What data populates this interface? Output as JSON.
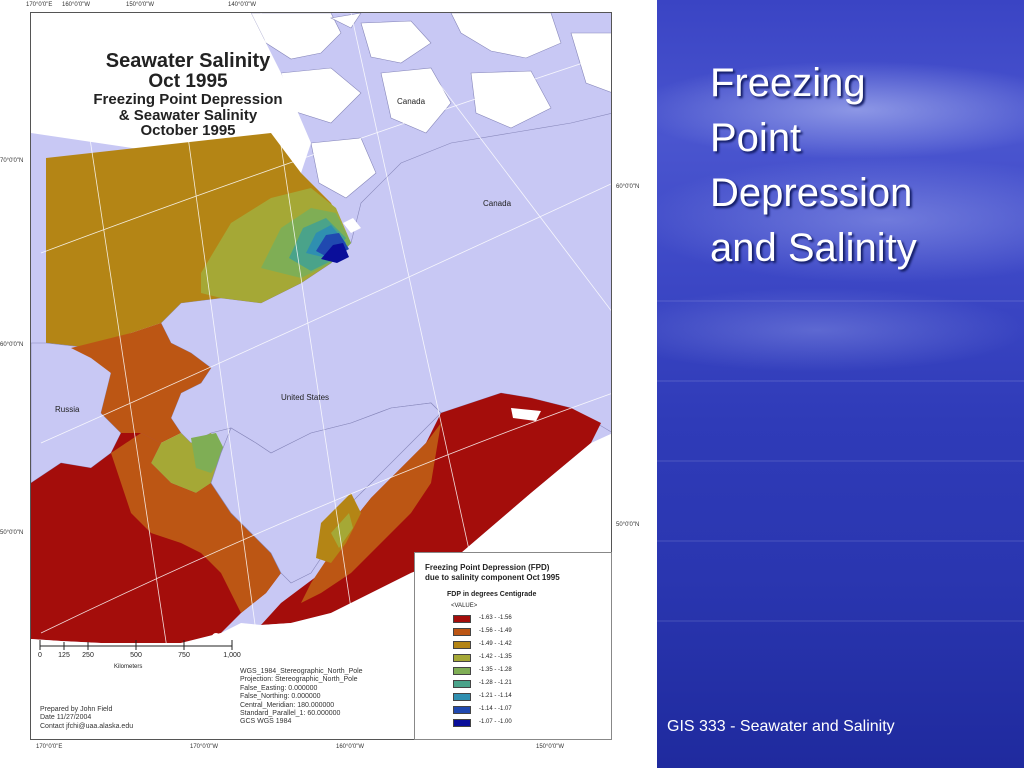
{
  "map": {
    "title_line1": "Seawater Salinity",
    "title_line2": "Oct 1995",
    "title_line3": "Freezing Point Depression",
    "title_line4": "& Seawater Salinity",
    "title_line5": "October 1995",
    "places": {
      "canada_top": "Canada",
      "canada_right": "Canada",
      "united_states": "United States",
      "russia": "Russia"
    },
    "coords": {
      "top_1": "170°0'0\"E",
      "top_2": "160°0'0\"W",
      "top_3": "150°0'0\"W",
      "top_4": "140°0'0\"W",
      "left_1": "70°0'0\"N",
      "left_2": "60°0'0\"N",
      "left_3": "50°0'0\"N",
      "right_1": "60°0'0\"N",
      "right_2": "50°0'0\"N",
      "bottom_1": "170°0'0\"E",
      "bottom_2": "170°0'0\"W",
      "bottom_3": "160°0'0\"W",
      "bottom_4": "150°0'0\"W"
    },
    "legend": {
      "title_line1": "Freezing Point Depression (FPD)",
      "title_line2": "due to salinity component Oct 1995",
      "subtitle": "FDP in degrees Centigrade",
      "value_header": "<VALUE>",
      "classes": [
        {
          "label": "-1.63 - -1.56",
          "color": "#a40d0b"
        },
        {
          "label": "-1.56 - -1.49",
          "color": "#bc5614"
        },
        {
          "label": "-1.49 - -1.42",
          "color": "#b48515"
        },
        {
          "label": "-1.42 - -1.35",
          "color": "#a5a836"
        },
        {
          "label": "-1.35 - -1.28",
          "color": "#7fae55"
        },
        {
          "label": "-1.28 - -1.21",
          "color": "#4aa38a"
        },
        {
          "label": "-1.21 - -1.14",
          "color": "#2f8fb0"
        },
        {
          "label": "-1.14 - -1.07",
          "color": "#2049b0"
        },
        {
          "label": "-1.07 - -1.00",
          "color": "#0a0e9a"
        }
      ]
    },
    "scalebar": {
      "labels": [
        "0",
        "125",
        "250",
        "500",
        "750",
        "1,000"
      ],
      "unit": "Kilometers"
    },
    "projection": [
      "WGS_1984_Stereographic_North_Pole",
      "Projection: Stereographic_North_Pole",
      "False_Easting: 0.000000",
      "False_Northing: 0.000000",
      "Central_Meridian: 180.000000",
      "Standard_Parallel_1: 60.000000",
      "GCS WGS 1984"
    ],
    "credits": [
      "Prepared by John Field",
      "Date 11/27/2004",
      "Contact jfchi@uaa.alaska.edu"
    ]
  },
  "slide": {
    "title_lines": [
      "Freezing",
      "Point",
      "Depression",
      "and Salinity"
    ],
    "footer": "GIS 333 -  Seawater and Salinity"
  }
}
